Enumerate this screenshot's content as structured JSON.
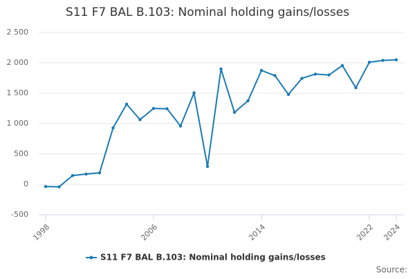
{
  "chart_data": {
    "type": "line",
    "title": "S11 F7 BAL B.103: Nominal holding gains/losses",
    "x": [
      1998,
      1999,
      2000,
      2001,
      2002,
      2003,
      2004,
      2005,
      2006,
      2007,
      2008,
      2009,
      2010,
      2011,
      2012,
      2013,
      2014,
      2015,
      2016,
      2017,
      2018,
      2019,
      2020,
      2021,
      2022,
      2023,
      2024
    ],
    "series": [
      {
        "name": "S11 F7 BAL B.103: Nominal holding gains/losses",
        "color": "#1a7ab5",
        "values": [
          -35,
          -40,
          145,
          170,
          190,
          930,
          1320,
          1065,
          1250,
          1245,
          960,
          1505,
          295,
          1900,
          1185,
          1375,
          1875,
          1790,
          1480,
          1745,
          1815,
          1800,
          1955,
          1590,
          2010,
          2040,
          2050
        ]
      }
    ],
    "xlim": [
      1998,
      2024
    ],
    "xticks": [
      1998,
      2006,
      2014,
      2022,
      2024
    ],
    "ylim": [
      -500,
      2500
    ],
    "yticks": [
      -500,
      0,
      500,
      {
        "value": 1000,
        "label": "1 000"
      },
      {
        "value": 1500,
        "label": "1 500"
      },
      {
        "value": 2000,
        "label": "2 000"
      },
      {
        "value": 2500,
        "label": "2 500"
      }
    ],
    "grid": true,
    "legend": "bottom",
    "source": "Source:"
  }
}
